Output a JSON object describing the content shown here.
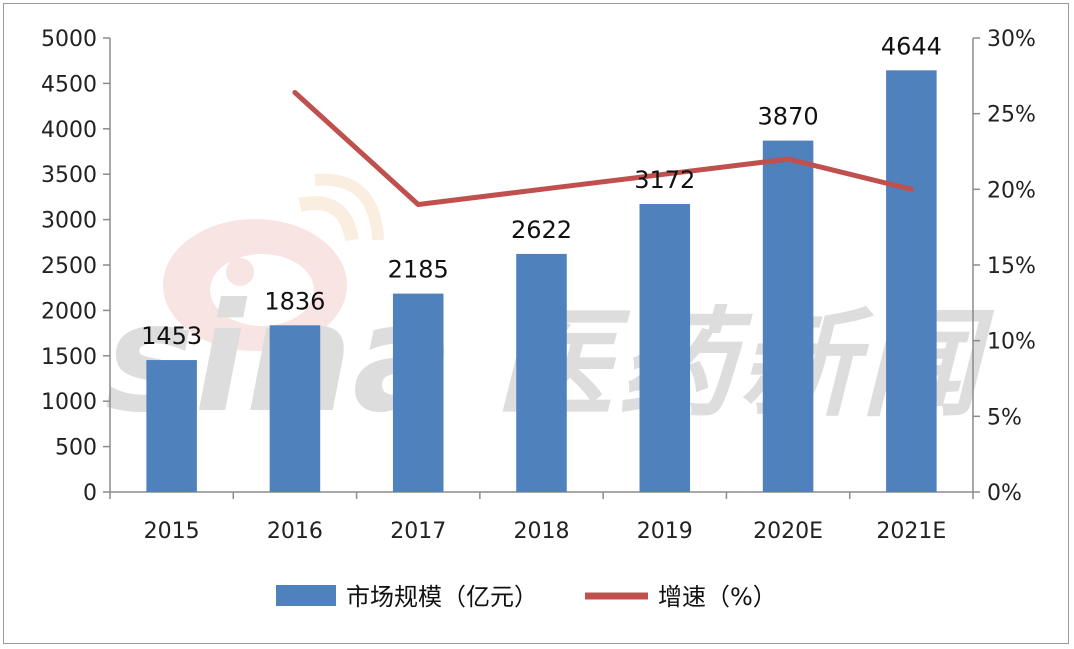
{
  "chart_data": {
    "type": "bar+line",
    "categories": [
      "2015",
      "2016",
      "2017",
      "2018",
      "2019",
      "2020E",
      "2021E"
    ],
    "series": [
      {
        "name": "市场规模（亿元）",
        "type": "bar",
        "axis": "left",
        "values": [
          1453,
          1836,
          2185,
          2622,
          3172,
          3870,
          4644
        ],
        "color": "#4f81bd"
      },
      {
        "name": "增速（%）",
        "type": "line",
        "axis": "right",
        "values": [
          null,
          26.4,
          19.0,
          20.0,
          21.0,
          22.0,
          20.0
        ],
        "color": "#c0504d"
      }
    ],
    "y_left": {
      "min": 0,
      "max": 5000,
      "ticks": [
        "0",
        "500",
        "1000",
        "1500",
        "2000",
        "2500",
        "3000",
        "3500",
        "4000",
        "4500",
        "5000"
      ]
    },
    "y_right": {
      "min": 0,
      "max": 30,
      "ticks": [
        "0%",
        "5%",
        "10%",
        "15%",
        "20%",
        "25%",
        "30%"
      ]
    },
    "legend_position": "bottom",
    "grid": false,
    "watermark": {
      "latin": "sina",
      "chinese": "医药新闻"
    }
  }
}
